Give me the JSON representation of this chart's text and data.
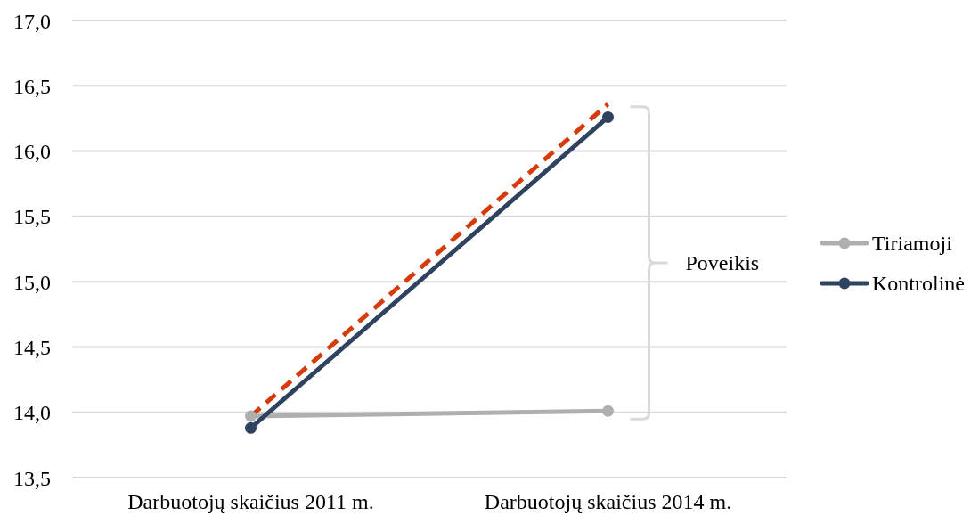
{
  "chart_data": {
    "type": "line",
    "categories": [
      "Darbuotojų skaičius 2011 m.",
      "Darbuotojų skaičius 2014 m."
    ],
    "series": [
      {
        "name": "Tiriamoji",
        "color": "#afafaf",
        "values": [
          13.97,
          14.01
        ]
      },
      {
        "name": "Kontrolinė",
        "color": "#2f4360",
        "values": [
          13.88,
          16.26
        ]
      },
      {
        "color": "#d63c0b",
        "values": [
          13.97,
          16.36
        ],
        "line_style": "dashed",
        "marker": "none"
      }
    ],
    "ylim": [
      13.5,
      17
    ],
    "yticks": [
      {
        "value": 13.5,
        "label": "13,5"
      },
      {
        "value": 14,
        "label": "14,0"
      },
      {
        "value": 14.5,
        "label": "14,5"
      },
      {
        "value": 15,
        "label": "15,0"
      },
      {
        "value": 15.5,
        "label": "15,5"
      },
      {
        "value": 16,
        "label": "16,0"
      },
      {
        "value": 16.5,
        "label": "16,5"
      },
      {
        "value": 17,
        "label": "17,0"
      }
    ],
    "grid": "y",
    "legend": "right",
    "marker": "circle",
    "line_style": "solid",
    "annotations": [
      "Poveikis"
    ]
  }
}
